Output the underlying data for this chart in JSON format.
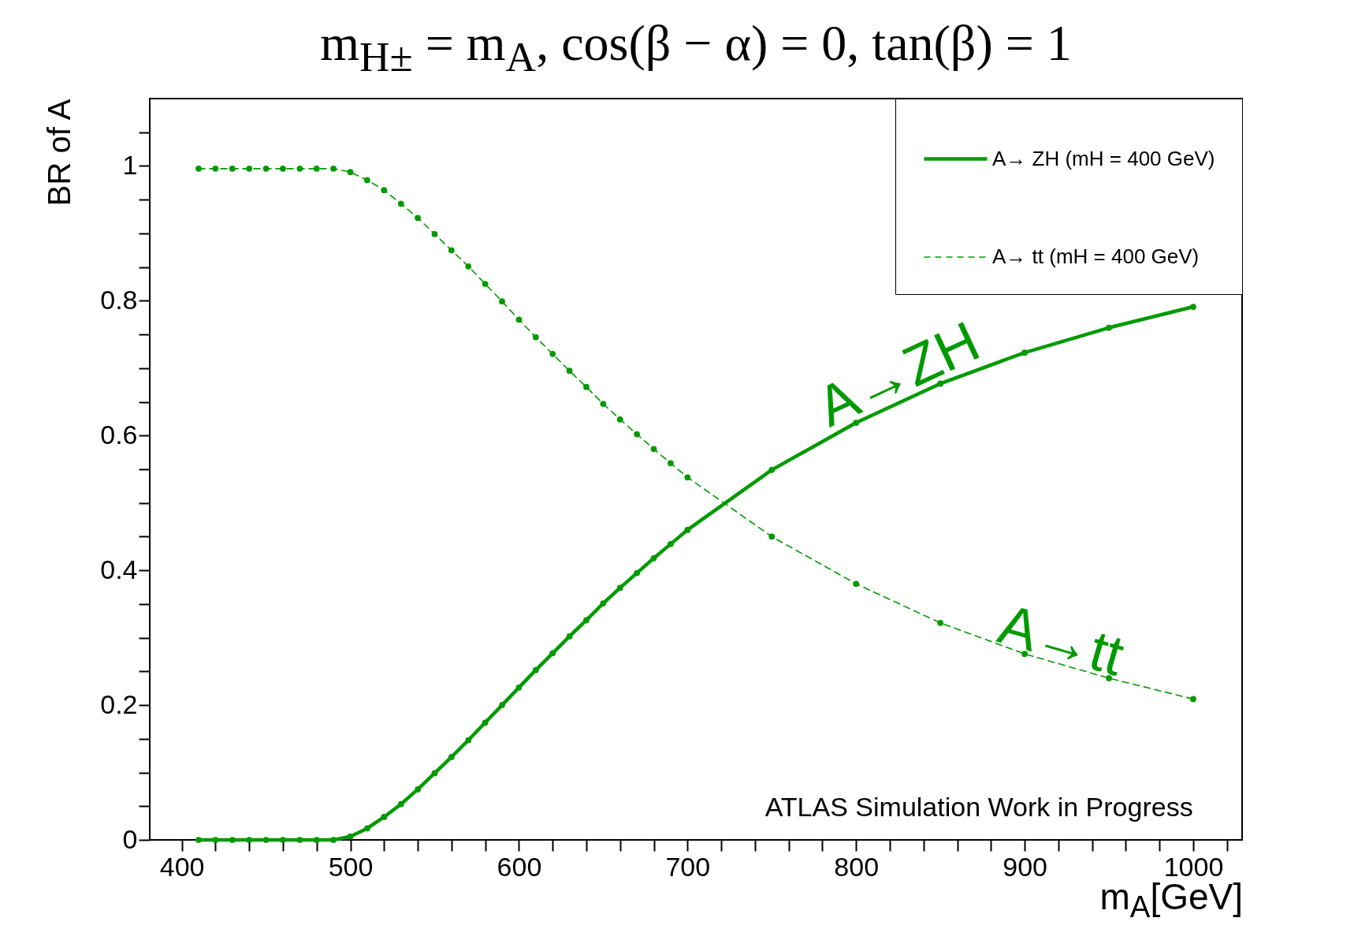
{
  "chart_data": {
    "type": "line",
    "title": "m$_{H±}$ = m$_{A}$, cos(β − α) = 0, tan(β) = 1",
    "xlabel": "m$_{A}$[GeV]",
    "ylabel": "BR of A",
    "x": [
      410,
      420,
      430,
      440,
      450,
      460,
      470,
      480,
      490,
      500,
      510,
      520,
      530,
      540,
      550,
      560,
      570,
      580,
      590,
      600,
      610,
      620,
      630,
      640,
      650,
      660,
      670,
      680,
      690,
      700,
      750,
      800,
      850,
      900,
      950,
      1000
    ],
    "series": [
      {
        "name": "A→ ZH (mH = 400 GeV)",
        "color": "#009a00",
        "line_style": "solid",
        "values": [
          0,
          0,
          0,
          0,
          0,
          0,
          0,
          0,
          0,
          0.005,
          0.017,
          0.034,
          0.053,
          0.075,
          0.099,
          0.123,
          0.148,
          0.174,
          0.2,
          0.226,
          0.252,
          0.277,
          0.302,
          0.326,
          0.351,
          0.374,
          0.396,
          0.418,
          0.439,
          0.46,
          0.549,
          0.619,
          0.677,
          0.723,
          0.76,
          0.791
        ]
      },
      {
        "name": "A→ tt (mH = 400 GeV)",
        "color": "#009a00",
        "line_style": "dashed",
        "values": [
          0.996,
          0.996,
          0.996,
          0.996,
          0.996,
          0.996,
          0.996,
          0.996,
          0.996,
          0.991,
          0.979,
          0.964,
          0.944,
          0.923,
          0.899,
          0.875,
          0.851,
          0.825,
          0.799,
          0.772,
          0.746,
          0.721,
          0.696,
          0.672,
          0.647,
          0.624,
          0.602,
          0.58,
          0.559,
          0.538,
          0.45,
          0.38,
          0.322,
          0.276,
          0.24,
          0.209
        ]
      }
    ],
    "xlim": [
      381,
      1029
    ],
    "xticks": [
      400,
      {
        "value": 420,
        "label": null
      },
      {
        "value": 440,
        "label": null
      },
      {
        "value": 460,
        "label": null
      },
      {
        "value": 480,
        "label": null
      },
      500,
      {
        "value": 520,
        "label": null
      },
      {
        "value": 540,
        "label": null
      },
      {
        "value": 560,
        "label": null
      },
      {
        "value": 580,
        "label": null
      },
      600,
      {
        "value": 620,
        "label": null
      },
      {
        "value": 640,
        "label": null
      },
      {
        "value": 660,
        "label": null
      },
      {
        "value": 680,
        "label": null
      },
      700,
      {
        "value": 720,
        "label": null
      },
      {
        "value": 740,
        "label": null
      },
      {
        "value": 760,
        "label": null
      },
      {
        "value": 780,
        "label": null
      },
      800,
      {
        "value": 820,
        "label": null
      },
      {
        "value": 840,
        "label": null
      },
      {
        "value": 860,
        "label": null
      },
      {
        "value": 880,
        "label": null
      },
      900,
      {
        "value": 920,
        "label": null
      },
      {
        "value": 940,
        "label": null
      },
      {
        "value": 960,
        "label": null
      },
      {
        "value": 980,
        "label": null
      },
      1000,
      {
        "value": 1020,
        "label": null
      }
    ],
    "ylim": [
      0,
      1.1
    ],
    "yticks": [
      0,
      {
        "value": 0.05,
        "label": null
      },
      {
        "value": 0.1,
        "label": null
      },
      {
        "value": 0.15,
        "label": null
      },
      0.2,
      {
        "value": 0.25,
        "label": null
      },
      {
        "value": 0.3,
        "label": null
      },
      {
        "value": 0.35,
        "label": null
      },
      0.4,
      {
        "value": 0.45,
        "label": null
      },
      {
        "value": 0.5,
        "label": null
      },
      {
        "value": 0.55,
        "label": null
      },
      0.6,
      {
        "value": 0.65,
        "label": null
      },
      {
        "value": 0.7,
        "label": null
      },
      {
        "value": 0.75,
        "label": null
      },
      0.8,
      {
        "value": 0.85,
        "label": null
      },
      {
        "value": 0.9,
        "label": null
      },
      {
        "value": 0.95,
        "label": null
      },
      1,
      {
        "value": 1.05,
        "label": null
      }
    ],
    "grid": false,
    "legend": "top right",
    "marker": "circle",
    "annotations": [
      "A→ZH",
      "A→tt",
      "ATLAS Simulation Work in Progress"
    ]
  }
}
